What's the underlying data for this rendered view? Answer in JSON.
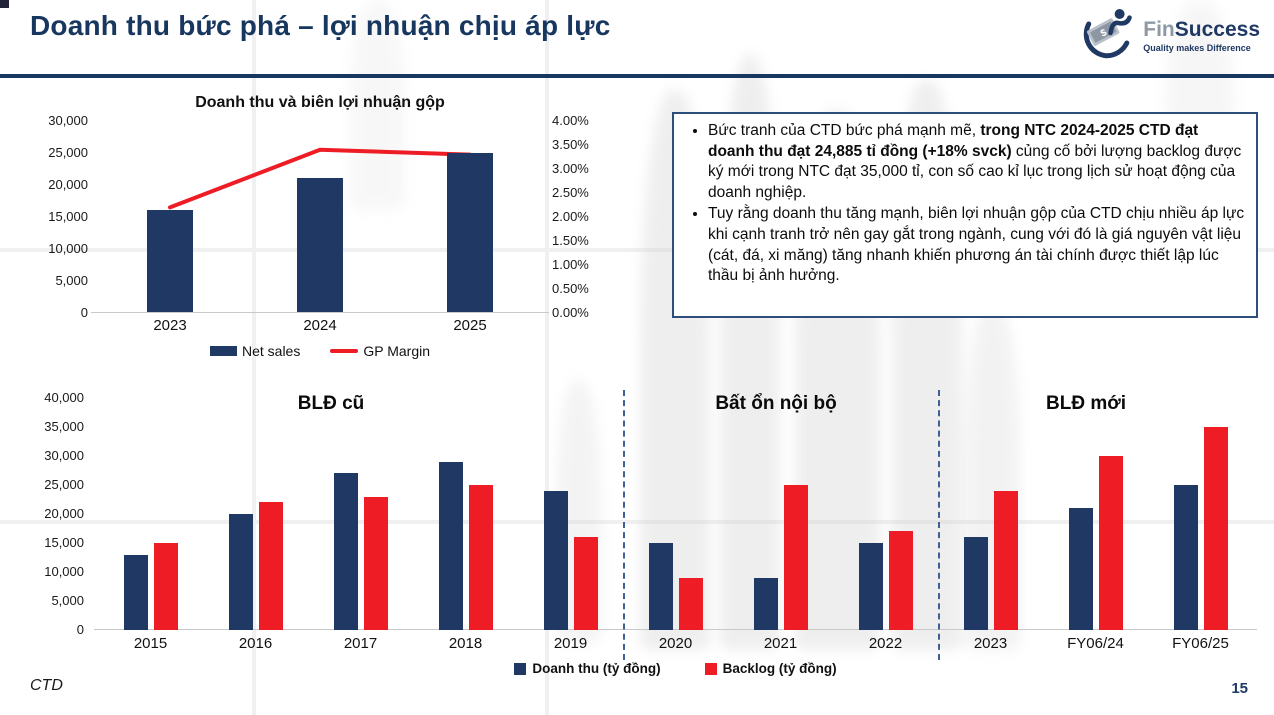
{
  "slide": {
    "title": "Doanh thu bức phá – lợi nhuận chịu áp lực",
    "footer_left": "CTD",
    "page_number": "15"
  },
  "logo": {
    "name_fin": "Fin",
    "name_success": "Success",
    "tagline": "Quality makes Difference",
    "dollar_glyph": "$"
  },
  "colors": {
    "navy": "#1F3864",
    "red": "#EE1C25",
    "title_navy": "#17375E"
  },
  "callout": {
    "bullet1_pre": "Bức tranh của CTD bức phá mạnh mẽ, ",
    "bullet1_bold": "trong NTC 2024-2025 CTD đạt doanh thu đạt 24,885 tỉ đồng (+18% svck)",
    "bullet1_post": " củng cố bởi lượng backlog được ký mới trong NTC đạt 35,000 tỉ, con số cao kỉ lục trong lịch sử hoạt động của doanh nghiệp.",
    "bullet2": "Tuy rằng doanh thu tăng mạnh, biên lợi nhuận gộp của CTD chịu nhiều áp lực khi cạnh tranh trở nên gay gắt trong ngành, cung với đó là giá nguyên vật liệu (cát, đá, xi măng) tăng nhanh khiến phương án tài chính được thiết lập lúc thầu bị ảnh hưởng."
  },
  "chart_data": [
    {
      "id": "revenue_and_gp_margin",
      "type": "bar",
      "title": "Doanh thu và biên lợi nhuận gộp",
      "categories": [
        "2023",
        "2024",
        "2025"
      ],
      "series": [
        {
          "name": "Net sales",
          "type": "bar",
          "axis": "left",
          "color": "#1F3864",
          "values": [
            16000,
            21000,
            24885
          ]
        },
        {
          "name": "GP Margin",
          "type": "line",
          "axis": "right",
          "color": "#EE1C25",
          "values_pct": [
            2.2,
            3.4,
            3.3
          ]
        }
      ],
      "left_axis": {
        "min": 0,
        "max": 30000,
        "ticks": [
          "30,000",
          "25,000",
          "20,000",
          "15,000",
          "10,000",
          "5,000",
          "0"
        ]
      },
      "right_axis": {
        "min": 0,
        "max": 4,
        "ticks": [
          "4.00%",
          "3.50%",
          "3.00%",
          "2.50%",
          "2.00%",
          "1.50%",
          "1.00%",
          "0.50%",
          "0.00%"
        ]
      },
      "legend_position": "bottom",
      "grid": false
    },
    {
      "id": "revenue_backlog_history",
      "type": "bar",
      "categories": [
        "2015",
        "2016",
        "2017",
        "2018",
        "2019",
        "2020",
        "2021",
        "2022",
        "2023",
        "FY06/24",
        "FY06/25"
      ],
      "series": [
        {
          "name": "Doanh thu (tỷ đồng)",
          "color": "#1F3864",
          "values": [
            13000,
            20000,
            27000,
            29000,
            24000,
            15000,
            9000,
            15000,
            16000,
            21000,
            25000
          ]
        },
        {
          "name": "Backlog (tỷ đồng)",
          "color": "#EE1C25",
          "values": [
            15000,
            22000,
            23000,
            25000,
            16000,
            9000,
            25000,
            17000,
            24000,
            30000,
            35000
          ]
        }
      ],
      "y_axis": {
        "min": 0,
        "max": 40000,
        "ticks": [
          "40,000",
          "35,000",
          "30,000",
          "25,000",
          "20,000",
          "15,000",
          "10,000",
          "5,000",
          "0"
        ]
      },
      "sections": [
        {
          "label": "BLĐ cũ",
          "categories": [
            "2015",
            "2016",
            "2017",
            "2018",
            "2019"
          ]
        },
        {
          "label": "Bất ổn nội bộ",
          "categories": [
            "2020",
            "2021",
            "2022"
          ]
        },
        {
          "label": "BLĐ mới",
          "categories": [
            "2023",
            "FY06/24",
            "FY06/25"
          ]
        }
      ],
      "legend_position": "bottom",
      "grid": false
    }
  ]
}
